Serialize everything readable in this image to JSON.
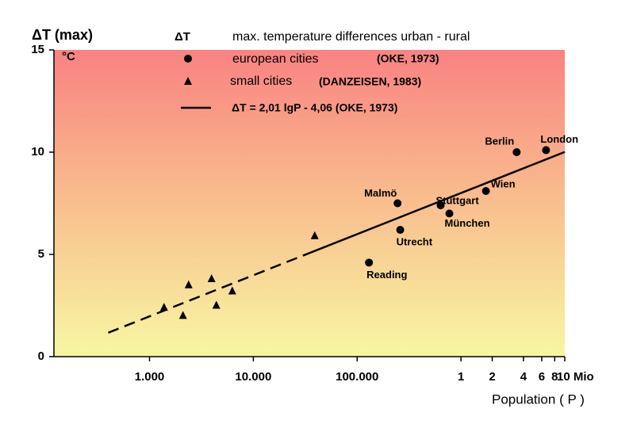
{
  "chart_data": {
    "type": "scatter",
    "y_axis_label": "ΔT (max)",
    "y_unit": "°C",
    "x_axis_label": "Population ( P )",
    "legend_header": "ΔT",
    "legend_header_text": "max. temperature differences urban - rural",
    "log_x": true,
    "xlim": [
      120,
      10000000
    ],
    "ylim": [
      0,
      15
    ],
    "xticks": [
      {
        "value": 1000,
        "label": "1.000"
      },
      {
        "value": 10000,
        "label": "10.000"
      },
      {
        "value": 100000,
        "label": "100.000"
      },
      {
        "value": 1000000,
        "label": "1"
      },
      {
        "value": 2000000,
        "label": "2"
      },
      {
        "value": 4000000,
        "label": "4"
      },
      {
        "value": 6000000,
        "label": "6"
      },
      {
        "value": 8000000,
        "label": "8"
      },
      {
        "value": 10000000,
        "label": "10 Mio"
      }
    ],
    "yticks": [
      0,
      5,
      10,
      15
    ],
    "series": [
      {
        "name": "european cities",
        "source": "(OKE, 1973)",
        "marker": "circle",
        "color": "#000000",
        "labels": [
          "Reading",
          "Utrecht",
          "Malmö",
          "Stuttgart",
          "München",
          "Wien",
          "Berlin",
          "London"
        ],
        "x": [
          130000,
          260000,
          245000,
          637000,
          773000,
          1740000,
          3440000,
          6600000
        ],
        "values": [
          4.6,
          6.2,
          7.5,
          7.4,
          7.0,
          8.1,
          10.0,
          10.1
        ]
      },
      {
        "name": "small cities",
        "source": "(DANZEISEN, 1983)",
        "marker": "triangle",
        "color": "#000000",
        "x": [
          1380,
          2100,
          2380,
          3960,
          4400,
          6270,
          39000
        ],
        "values": [
          2.4,
          2.0,
          3.5,
          3.8,
          2.5,
          3.2,
          5.9
        ]
      },
      {
        "name": "ΔT = 2,01 lgP - 4,06 (OKE, 1973)",
        "marker": "line",
        "color": "#000000",
        "line_styles": [
          "dashed",
          "solid"
        ],
        "x": [
          400,
          30000,
          10000000
        ],
        "values": [
          1.17,
          4.94,
          10.01
        ]
      }
    ]
  }
}
